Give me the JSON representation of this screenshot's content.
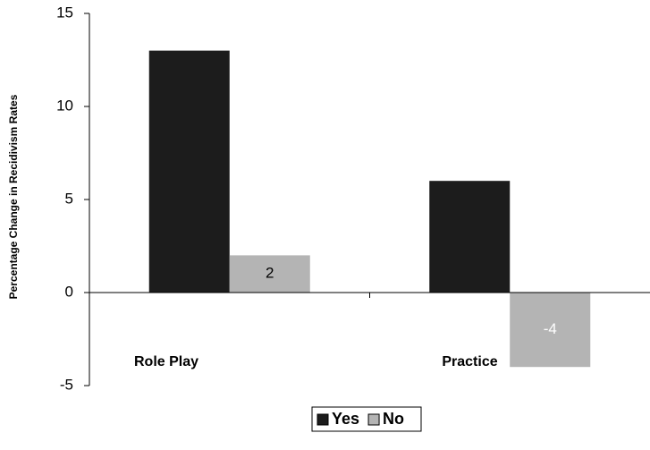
{
  "chart_data": {
    "type": "bar",
    "y_axis_label": "Percentage Change in Recidivism Rates",
    "categories": [
      "Role Play",
      "Practice"
    ],
    "series": [
      {
        "name": "Yes",
        "color": "#1c1c1c",
        "values": [
          13,
          6
        ],
        "show_values": false
      },
      {
        "name": "No",
        "color": "#b4b4b4",
        "values": [
          2,
          -4
        ],
        "show_values": true
      }
    ],
    "ylim": [
      -5,
      15
    ],
    "yticks": [
      -5,
      0,
      5,
      10,
      15
    ],
    "grid": false,
    "legend": "bottom"
  }
}
